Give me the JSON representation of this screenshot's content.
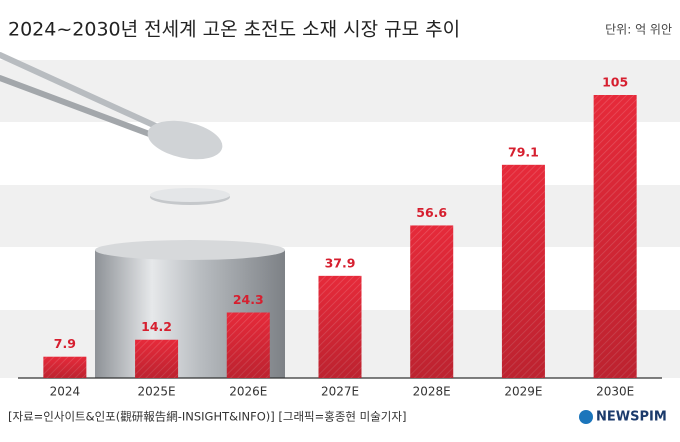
{
  "chart_data": {
    "type": "bar",
    "title": "2024~2030년 전세계 고온 초전도 소재 시장 규모 추이",
    "unit_label": "단위: 억 위안",
    "categories": [
      "2024",
      "2025E",
      "2026E",
      "2027E",
      "2028E",
      "2029E",
      "2030E"
    ],
    "values": [
      7.9,
      14.2,
      24.3,
      37.9,
      56.6,
      79.1,
      105
    ],
    "color": "#e62a3a",
    "source": "[자료=인사이트&인포(觀研報告網-INSIGHT&INFO)] [그래픽=홍종현 미술기자]",
    "logo": "NEWSPIM"
  }
}
